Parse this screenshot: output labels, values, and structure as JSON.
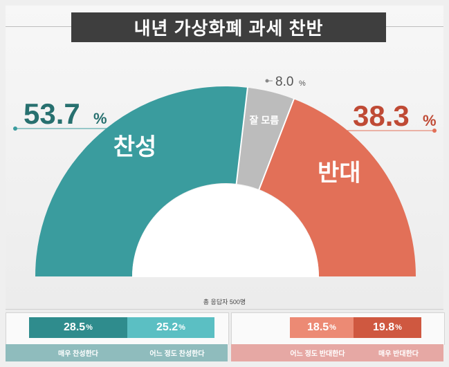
{
  "title": "내년 가상화폐 과세 찬반",
  "total_note": "총 응답자 500명",
  "labels": {
    "support": "찬성",
    "oppose": "반대",
    "unknown": "잘 모름"
  },
  "big_values": {
    "support": "53.7",
    "oppose": "38.3",
    "unknown": "8.0",
    "unit": "%"
  },
  "breakdown": {
    "strong_support": {
      "value": "28.5",
      "unit": "%",
      "label": "매우 찬성한다"
    },
    "mild_support": {
      "value": "25.2",
      "unit": "%",
      "label": "어느 정도 찬성한다"
    },
    "mild_oppose": {
      "value": "18.5",
      "unit": "%",
      "label": "어느 정도 반대한다"
    },
    "strong_oppose": {
      "value": "19.8",
      "unit": "%",
      "label": "매우 반대한다"
    }
  },
  "colors": {
    "support": "#3a9c9e",
    "oppose": "#e27058",
    "unknown": "#bcbcbc",
    "strong_support": "#2f8c8d",
    "mild_support": "#5bbfc3",
    "mild_oppose": "#ec8a74",
    "strong_oppose": "#cf5840",
    "support_text": "#27706f",
    "oppose_text": "#bf4a35",
    "support_strip": "#8fbcbd",
    "oppose_strip": "#e6a8a4"
  },
  "chart_data": {
    "type": "pie",
    "title": "내년 가상화폐 과세 찬반",
    "categories": [
      "찬성",
      "잘 모름",
      "반대"
    ],
    "values": [
      53.7,
      8.0,
      38.3
    ],
    "sub_breakdown": [
      {
        "group": "찬성",
        "categories": [
          "매우 찬성한다",
          "어느 정도 찬성한다"
        ],
        "values": [
          28.5,
          25.2
        ]
      },
      {
        "group": "반대",
        "categories": [
          "어느 정도 반대한다",
          "매우 반대한다"
        ],
        "values": [
          18.5,
          19.8
        ]
      }
    ],
    "note": "총 응답자 500명"
  }
}
